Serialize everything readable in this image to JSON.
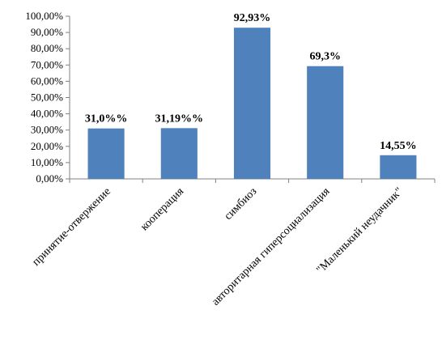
{
  "chart_data": {
    "type": "bar",
    "categories": [
      "принятие-отвержение",
      "кооперация",
      "симбиоз",
      "авторитарная гиперсоциализация",
      "\"Маленький неудачник\""
    ],
    "values": [
      31.0,
      31.19,
      92.93,
      69.3,
      14.55
    ],
    "data_labels": [
      "31,0%%",
      "31,19%%",
      "92,93%",
      "69,3%",
      "14,55%"
    ],
    "y_tick_labels": [
      "0,00%",
      "10,00%",
      "20,00%",
      "30,00%",
      "40,00%",
      "50,00%",
      "60,00%",
      "70,00%",
      "80,00%",
      "90,00%",
      "100,00%"
    ],
    "ylim": [
      0,
      100
    ],
    "title": "",
    "xlabel": "",
    "ylabel": "",
    "grid": false,
    "legend": "none",
    "bar_color": "#4F81BD"
  }
}
